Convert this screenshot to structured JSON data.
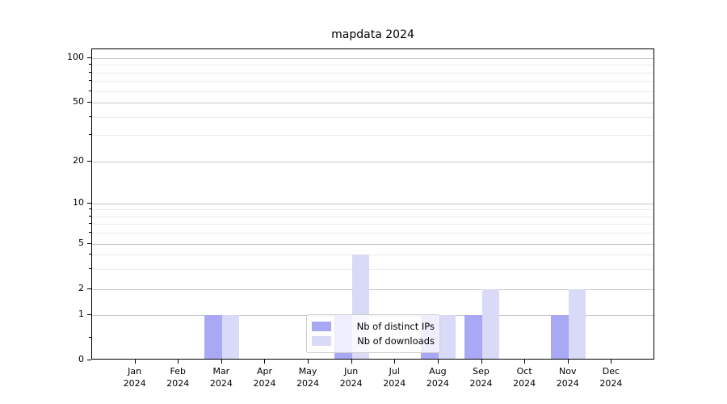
{
  "title": "mapdata 2024",
  "chart_data": {
    "type": "bar",
    "title": "mapdata 2024",
    "categories": [
      "Jan",
      "Feb",
      "Mar",
      "Apr",
      "May",
      "Jun",
      "Jul",
      "Aug",
      "Sep",
      "Oct",
      "Nov",
      "Dec"
    ],
    "year": "2024",
    "series": [
      {
        "name": "Nb of distinct IPs",
        "color": "#a8a8f5",
        "values": [
          0,
          0,
          1,
          0,
          0,
          1,
          0,
          1,
          1,
          0,
          1,
          0
        ]
      },
      {
        "name": "Nb of downloads",
        "color": "#d9d9f8",
        "values": [
          0,
          0,
          1,
          0,
          0,
          4,
          0,
          1,
          2,
          0,
          2,
          0
        ]
      }
    ],
    "xlabel": "",
    "ylabel": "",
    "yscale": "log-like (asinh), linear below 1",
    "y_major_ticks": [
      0,
      1,
      2,
      5,
      10,
      20,
      50,
      100
    ],
    "y_minor_ticks": [
      0.5,
      3,
      4,
      6,
      7,
      8,
      9,
      30,
      40,
      60,
      70,
      80,
      90
    ],
    "ylim": [
      0,
      115
    ],
    "grid": "major and minor horizontal gridlines",
    "legend_position": "lower center"
  }
}
